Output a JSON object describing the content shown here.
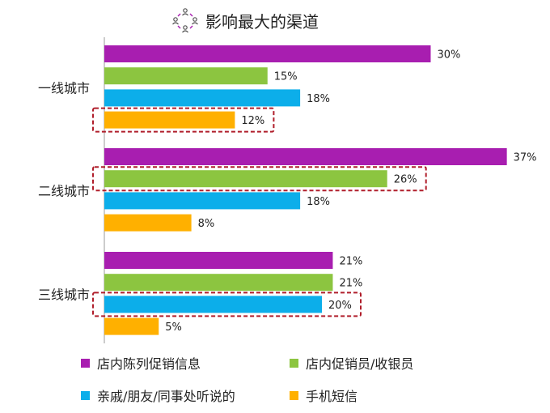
{
  "title": "影响最大的渠道",
  "title_icon": "people-network-icon",
  "colors": {
    "store_display": "#A81EB0",
    "promoter": "#8CC540",
    "friends": "#0CAEEA",
    "sms": "#FFB000",
    "highlight": "#B01E2B",
    "axis": "#999999"
  },
  "chart_data": {
    "type": "bar",
    "orientation": "horizontal",
    "categories": [
      "一线城市",
      "二线城市",
      "三线城市"
    ],
    "series": [
      {
        "name": "店内陈列促销信息",
        "color_key": "store_display",
        "values": [
          30,
          37,
          21
        ],
        "labels": [
          "30%",
          "37%",
          "21%"
        ]
      },
      {
        "name": "店内促销员/收银员",
        "color_key": "promoter",
        "values": [
          15,
          26,
          21
        ],
        "labels": [
          "15%",
          "26%",
          "21%"
        ]
      },
      {
        "name": "亲戚/朋友/同事处听说的",
        "color_key": "friends",
        "values": [
          18,
          18,
          20
        ],
        "labels": [
          "18%",
          "18%",
          "20%"
        ]
      },
      {
        "name": "手机短信",
        "color_key": "sms",
        "values": [
          12,
          8,
          5
        ],
        "labels": [
          "12%",
          "8%",
          "5%"
        ]
      }
    ],
    "highlighted": [
      {
        "category_index": 0,
        "series_index": 3
      },
      {
        "category_index": 1,
        "series_index": 1
      },
      {
        "category_index": 2,
        "series_index": 2
      }
    ],
    "xlim": [
      0,
      40
    ],
    "grid": false,
    "legend_position": "bottom"
  }
}
